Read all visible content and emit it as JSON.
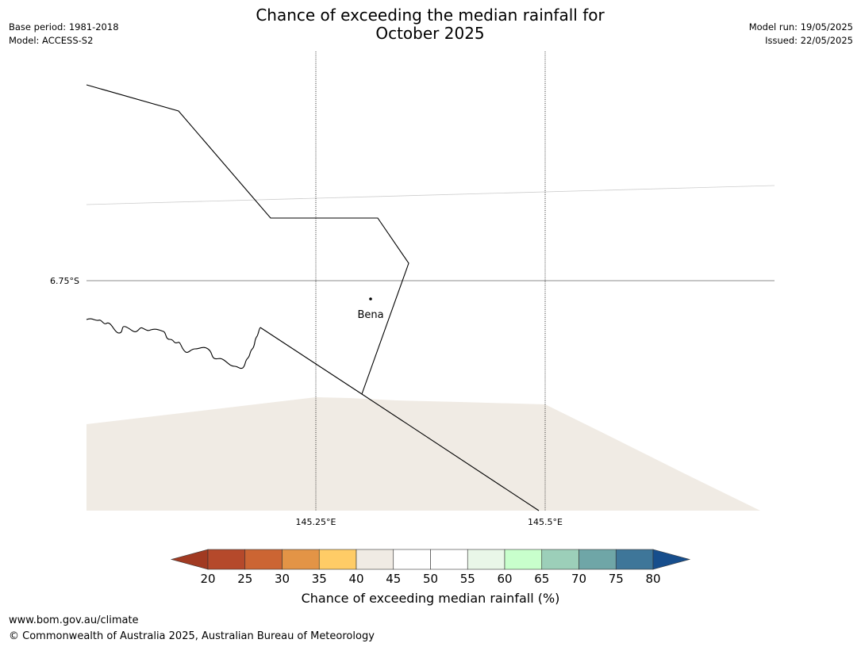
{
  "title_line1": "Chance of exceeding the median rainfall for",
  "title_line2": "October 2025",
  "meta_left": [
    "Base period: 1981-2018",
    "Model: ACCESS-S2"
  ],
  "meta_right": [
    "Model run: 19/05/2025",
    "Issued: 22/05/2025"
  ],
  "map": {
    "lat_label": "6.75°S",
    "lon_labels": [
      "145.25°E",
      "145.5°E"
    ],
    "place_label": "Bena",
    "ocean_fill": "#f0ebe4"
  },
  "colorbar": {
    "ticks": [
      "20",
      "25",
      "30",
      "35",
      "40",
      "45",
      "50",
      "55",
      "60",
      "65",
      "70",
      "75",
      "80"
    ],
    "colors": [
      "#a13a22",
      "#b5492b",
      "#cc6533",
      "#e39446",
      "#ffcc66",
      "#f0ebe4",
      "#ffffff",
      "#ffffff",
      "#e9f7e8",
      "#c8ffcc",
      "#9ccfb9",
      "#6fa6a7",
      "#3e7699",
      "#174e8c"
    ],
    "label": "Chance of exceeding median rainfall (%)"
  },
  "footer": {
    "url": "www.bom.gov.au/climate",
    "copyright": "© Commonwealth of Australia 2025, Australian Bureau of Meteorology"
  }
}
